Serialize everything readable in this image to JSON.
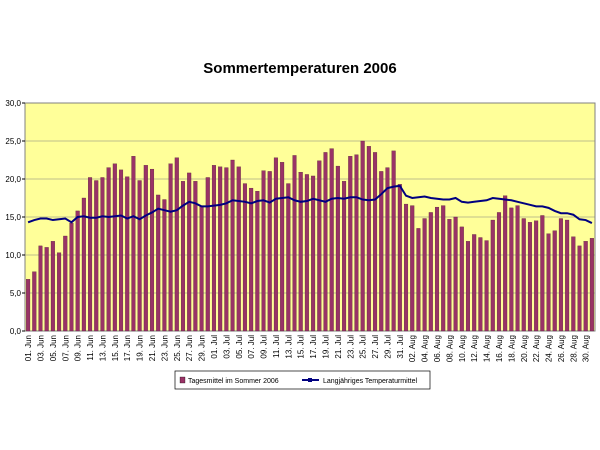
{
  "chart_data": {
    "type": "bar-line",
    "title": "Sommertemperaturen 2006",
    "categories": [
      "01. Jun",
      null,
      "03. Jun",
      null,
      "05. Jun",
      null,
      "07. Jun",
      null,
      "09. Jun",
      null,
      "11. Jun",
      null,
      "13. Jun",
      null,
      "15. Jun",
      null,
      "17. Jun",
      null,
      "19. Jun",
      null,
      "21. Jun",
      null,
      "23. Jun",
      null,
      "25. Jun",
      null,
      "27. Jun",
      null,
      "29. Jun",
      null,
      "01. Jul",
      null,
      "03. Jul",
      null,
      "05. Jul",
      null,
      "07. Jul",
      null,
      "09. Jul",
      null,
      "11. Jul",
      null,
      "13. Jul",
      null,
      "15. Jul",
      null,
      "17. Jul",
      null,
      "19. Jul",
      null,
      "21. Jul",
      null,
      "23. Jul",
      null,
      "25. Jul",
      null,
      "27. Jul",
      null,
      "29. Jul",
      null,
      "31. Jul",
      null,
      "02. Aug",
      null,
      "04. Aug",
      null,
      "06. Aug",
      null,
      "08. Aug",
      null,
      "10. Aug",
      null,
      "12. Aug",
      null,
      "14. Aug",
      null,
      "16. Aug",
      null,
      "18. Aug",
      null,
      "20. Aug",
      null,
      "22. Aug",
      null,
      "24. Aug",
      null,
      "26. Aug",
      null,
      "28. Aug",
      null,
      "30. Aug",
      null
    ],
    "series": [
      {
        "name": "Tagesmittel im Sommer 2006",
        "color": "#993366",
        "kind": "bar",
        "values": [
          6.8,
          7.8,
          11.2,
          11.0,
          11.8,
          10.3,
          12.5,
          14.2,
          15.8,
          17.5,
          20.2,
          19.8,
          20.2,
          21.5,
          22.0,
          21.2,
          20.3,
          23.0,
          19.8,
          21.8,
          21.3,
          17.9,
          17.3,
          22.0,
          22.8,
          19.7,
          20.8,
          19.7,
          16.4,
          20.2,
          21.8,
          21.6,
          21.5,
          22.5,
          21.6,
          19.4,
          18.8,
          18.4,
          21.1,
          21.0,
          22.8,
          22.2,
          19.4,
          23.1,
          20.9,
          20.6,
          20.4,
          22.4,
          23.5,
          24.0,
          21.7,
          19.7,
          23.0,
          23.2,
          25.0,
          24.3,
          23.5,
          21.0,
          21.5,
          23.7,
          19.3,
          16.7,
          16.5,
          13.5,
          14.8,
          15.6,
          16.3,
          16.5,
          14.7,
          15.0,
          13.7,
          11.8,
          12.7,
          12.3,
          11.9,
          14.6,
          15.6,
          17.8,
          16.2,
          16.5,
          14.8,
          14.3,
          14.5,
          15.2,
          12.8,
          13.2,
          14.8,
          14.6,
          12.4,
          11.2,
          11.8,
          12.2
        ]
      },
      {
        "name": "Langjähriges Temperaturmittel",
        "color": "#000080",
        "kind": "line",
        "values": [
          14.3,
          14.6,
          14.8,
          14.8,
          14.6,
          14.7,
          14.8,
          14.3,
          15.0,
          15.1,
          14.9,
          14.9,
          15.1,
          15.0,
          15.1,
          15.2,
          14.8,
          15.1,
          14.7,
          15.2,
          15.6,
          16.1,
          15.9,
          15.7,
          15.9,
          16.5,
          17.0,
          16.8,
          16.4,
          16.4,
          16.5,
          16.6,
          16.8,
          17.2,
          17.1,
          17.0,
          16.8,
          17.1,
          17.2,
          16.9,
          17.4,
          17.5,
          17.6,
          17.2,
          17.0,
          17.1,
          17.4,
          17.2,
          17.0,
          17.4,
          17.5,
          17.4,
          17.6,
          17.6,
          17.3,
          17.2,
          17.3,
          18.0,
          18.8,
          19.0,
          19.1,
          17.8,
          17.5,
          17.6,
          17.7,
          17.5,
          17.4,
          17.3,
          17.3,
          17.5,
          17.0,
          16.9,
          17.0,
          17.1,
          17.2,
          17.5,
          17.4,
          17.3,
          17.2,
          17.0,
          16.8,
          16.6,
          16.4,
          16.4,
          16.2,
          15.8,
          15.5,
          15.5,
          15.3,
          14.7,
          14.6,
          14.2
        ]
      }
    ],
    "ylim": [
      0,
      30
    ],
    "yticks": [
      {
        "value": 0,
        "label": "0,0"
      },
      {
        "value": 5,
        "label": "5,0"
      },
      {
        "value": 10,
        "label": "10,0"
      },
      {
        "value": 15,
        "label": "15,0"
      },
      {
        "value": 20,
        "label": "20,0"
      },
      {
        "value": 25,
        "label": "25,0"
      },
      {
        "value": 30,
        "label": "30,0"
      }
    ],
    "grid": true,
    "plot_background": "#ffff99",
    "legend": "bottom"
  }
}
